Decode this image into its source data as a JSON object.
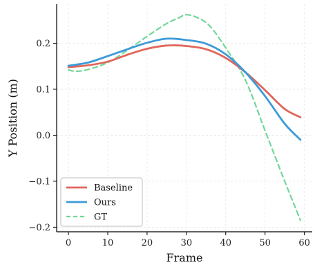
{
  "chart_data": {
    "type": "line",
    "title": "",
    "xlabel": "Frame",
    "ylabel": "Y Position (m)",
    "xlim": [
      -3,
      62
    ],
    "ylim": [
      -0.21,
      0.285
    ],
    "xticks": [
      0,
      10,
      20,
      30,
      40,
      50,
      60
    ],
    "yticks": [
      -0.2,
      -0.1,
      0.0,
      0.1,
      0.2
    ],
    "xtick_labels": [
      "0",
      "10",
      "20",
      "30",
      "40",
      "50",
      "60"
    ],
    "ytick_labels": [
      "−0.2",
      "−0.1",
      "0.0",
      "0.1",
      "0.2"
    ],
    "grid": true,
    "legend_position": "lower-left",
    "series": [
      {
        "name": "Baseline",
        "color": "#e0665b",
        "style": "solid",
        "x": [
          0,
          5,
          10,
          15,
          20,
          25,
          30,
          35,
          40,
          45,
          50,
          55,
          59
        ],
        "y": [
          0.148,
          0.152,
          0.16,
          0.175,
          0.188,
          0.195,
          0.194,
          0.187,
          0.168,
          0.137,
          0.098,
          0.057,
          0.039
        ]
      },
      {
        "name": "Ours",
        "color": "#3d9ad9",
        "style": "solid",
        "x": [
          0,
          5,
          10,
          15,
          20,
          25,
          30,
          35,
          40,
          45,
          50,
          55,
          59
        ],
        "y": [
          0.151,
          0.158,
          0.172,
          0.187,
          0.201,
          0.21,
          0.207,
          0.199,
          0.176,
          0.137,
          0.085,
          0.025,
          -0.01
        ]
      },
      {
        "name": "GT",
        "color": "#72d69a",
        "style": "dashed",
        "x": [
          0,
          2,
          5,
          10,
          15,
          20,
          25,
          28,
          30,
          33,
          36,
          40,
          45,
          50,
          55,
          59
        ],
        "y": [
          0.142,
          0.139,
          0.143,
          0.158,
          0.185,
          0.215,
          0.243,
          0.255,
          0.262,
          0.255,
          0.237,
          0.19,
          0.12,
          0.01,
          -0.1,
          -0.185
        ]
      }
    ]
  }
}
